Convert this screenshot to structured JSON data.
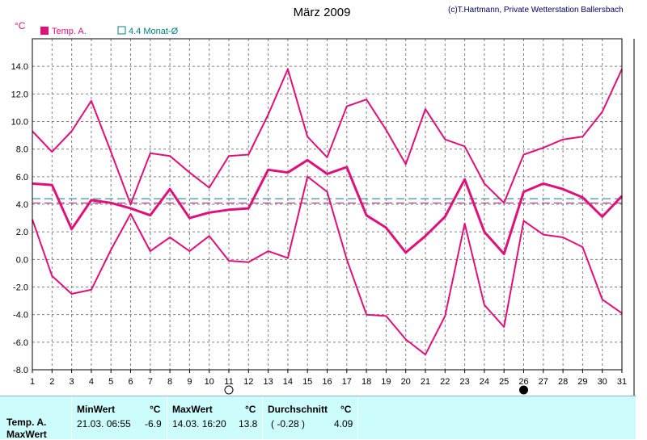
{
  "title": "März 2009",
  "credit": "(c)T.Hartmann, Private Wetterstation Ballersbach",
  "unit": "°C",
  "legend": [
    {
      "label": "Temp. A.",
      "color": "#e0107a",
      "marker": "filled"
    },
    {
      "label": "4.4 Monat-Ø",
      "color": "#008080",
      "marker": "hollow"
    }
  ],
  "chart_data": {
    "type": "line",
    "x": [
      1,
      2,
      3,
      4,
      5,
      6,
      7,
      8,
      9,
      10,
      11,
      12,
      13,
      14,
      15,
      16,
      17,
      18,
      19,
      20,
      21,
      22,
      23,
      24,
      25,
      26,
      27,
      28,
      29,
      30,
      31
    ],
    "xlim": [
      1,
      31
    ],
    "ylim": [
      -8,
      16
    ],
    "yticks": [
      "-8.0",
      "-6.0",
      "-4.0",
      "-2.0",
      "0.0",
      "2.0",
      "4.0",
      "6.0",
      "8.0",
      "10.0",
      "12.0",
      "14.0"
    ],
    "xticks": [
      "1",
      "2",
      "3",
      "4",
      "5",
      "6",
      "7",
      "8",
      "9",
      "10",
      "11",
      "12",
      "13",
      "14",
      "15",
      "16",
      "17",
      "18",
      "19",
      "20",
      "21",
      "22",
      "23",
      "24",
      "25",
      "26",
      "27",
      "28",
      "29",
      "30",
      "31"
    ],
    "grid": true,
    "series": [
      {
        "name": "Temp. A.",
        "role": "max",
        "color": "#e0107a",
        "values": [
          9.3,
          7.8,
          9.3,
          11.5,
          7.8,
          4.0,
          7.7,
          7.5,
          6.3,
          5.2,
          7.5,
          7.6,
          10.5,
          13.8,
          8.9,
          7.4,
          11.1,
          11.6,
          9.4,
          6.9,
          10.9,
          8.7,
          8.2,
          5.5,
          4.1,
          7.6,
          8.1,
          8.7,
          8.9,
          10.7,
          13.8
        ]
      },
      {
        "name": "Temp. A.",
        "role": "avg",
        "color": "#e0107a",
        "values": [
          5.5,
          5.4,
          2.2,
          4.3,
          4.1,
          3.7,
          3.2,
          5.1,
          3.0,
          3.4,
          3.6,
          3.7,
          6.5,
          6.3,
          7.2,
          6.2,
          6.7,
          3.2,
          2.3,
          0.5,
          1.7,
          3.1,
          5.8,
          2.0,
          0.4,
          4.9,
          5.5,
          5.1,
          4.5,
          3.1,
          4.6
        ]
      },
      {
        "name": "Temp. A.",
        "role": "min",
        "color": "#e0107a",
        "values": [
          2.9,
          -1.2,
          -2.5,
          -2.2,
          0.7,
          3.3,
          0.6,
          1.6,
          0.6,
          1.7,
          -0.1,
          -0.2,
          0.6,
          0.1,
          6.0,
          4.9,
          0.0,
          -4.0,
          -4.1,
          -5.8,
          -6.9,
          -4.1,
          2.6,
          -3.3,
          -4.9,
          2.8,
          1.8,
          1.6,
          0.9,
          -2.9,
          -3.9
        ]
      }
    ],
    "reference_lines": [
      {
        "name": "4.4 Monat-Ø",
        "value": 4.4,
        "color": "#008080",
        "style": "dashed"
      },
      {
        "name": "mean",
        "value": 4.09,
        "color": "#e0107a",
        "style": "dashed"
      }
    ],
    "moon_phases": [
      {
        "day": 11,
        "phase": "full"
      },
      {
        "day": 26,
        "phase": "new"
      }
    ]
  },
  "stats": {
    "row_label": "Temp. A.",
    "row_label2": "MaxWert",
    "min": {
      "header": "MinWert",
      "unit": "°C",
      "when": "21.03.  06:55",
      "value": "-6.9"
    },
    "max": {
      "header": "MaxWert",
      "unit": "°C",
      "when": "14.03.  16:20",
      "value": "13.8"
    },
    "avg": {
      "header": "Durchschnitt",
      "unit": "°C",
      "extra": "( -0.28 )",
      "value": "4.09"
    }
  }
}
